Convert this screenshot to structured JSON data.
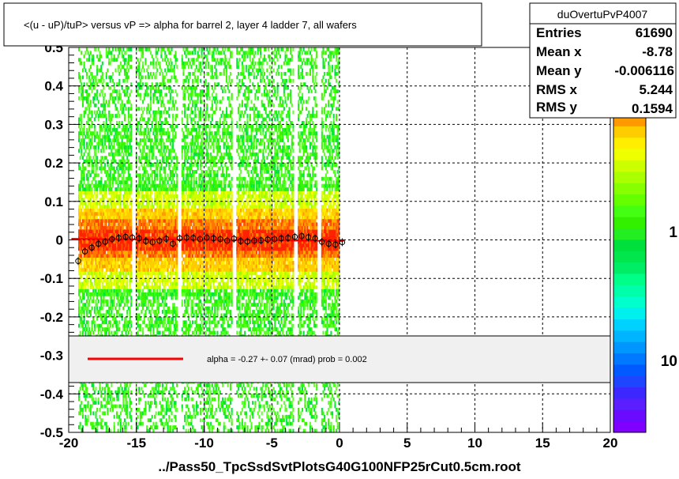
{
  "chart_data": {
    "type": "heatmap",
    "title": "<(u - uP)/tuP> versus   vP => alpha for barrel 2, layer 4 ladder 7, all wafers",
    "xlabel": "../Pass50_TpcSsdSvtPlotsG40G100NFP25rCut0.5cm.root",
    "ylabel": "",
    "xlim": [
      -20,
      20
    ],
    "ylim": [
      -0.5,
      0.5
    ],
    "x_ticks": [
      "-20",
      "-15",
      "-10",
      "-5",
      "0",
      "5",
      "10",
      "15",
      "20"
    ],
    "x_tick_values": [
      -20,
      -15,
      -10,
      -5,
      0,
      5,
      10,
      15,
      20
    ],
    "y_ticks": [
      "-0.5",
      "-0.4",
      "-0.3",
      "-0.2",
      "-0.1",
      "0",
      "0.1",
      "0.2",
      "0.3",
      "0.4",
      "0.5"
    ],
    "y_tick_values": [
      -0.5,
      -0.4,
      -0.3,
      -0.2,
      -0.1,
      0,
      0.1,
      0.2,
      0.3,
      0.4,
      0.5
    ],
    "grid": true,
    "colorbar_labels": [
      "1",
      "10"
    ],
    "stats": {
      "name": "duOvertuPvP4007",
      "rows": [
        {
          "label": "Entries",
          "value": "61690"
        },
        {
          "label": "Mean x",
          "value": "-8.78"
        },
        {
          "label": "Mean y",
          "value": "-0.006116"
        },
        {
          "label": "RMS x",
          "value": "5.244"
        },
        {
          "label": "RMS y",
          "value": "0.1594"
        }
      ]
    },
    "fit": {
      "label": "alpha =   -0.27 +-  0.07 (mrad) prob = 0.002",
      "x_range": [
        -19.8,
        0.3
      ],
      "y_at_start": 0.003,
      "y_at_end": -0.003,
      "color": "#ff0000"
    },
    "profile_points": [
      {
        "x": -19.3,
        "y": -0.055
      },
      {
        "x": -18.8,
        "y": -0.03
      },
      {
        "x": -18.3,
        "y": -0.02
      },
      {
        "x": -17.8,
        "y": -0.01
      },
      {
        "x": -17.3,
        "y": -0.005
      },
      {
        "x": -16.8,
        "y": 0.002
      },
      {
        "x": -16.3,
        "y": 0.005
      },
      {
        "x": -15.8,
        "y": 0.008
      },
      {
        "x": -15.3,
        "y": 0.006
      },
      {
        "x": -14.8,
        "y": 0.004
      },
      {
        "x": -14.3,
        "y": -0.003
      },
      {
        "x": -13.8,
        "y": -0.006
      },
      {
        "x": -13.3,
        "y": -0.002
      },
      {
        "x": -12.8,
        "y": 0.003
      },
      {
        "x": -12.3,
        "y": -0.01
      },
      {
        "x": -11.8,
        "y": 0.004
      },
      {
        "x": -11.3,
        "y": 0.006
      },
      {
        "x": -10.8,
        "y": 0.005
      },
      {
        "x": -10.3,
        "y": 0.002
      },
      {
        "x": -9.8,
        "y": 0.006
      },
      {
        "x": -9.3,
        "y": 0.004
      },
      {
        "x": -8.8,
        "y": 0.002
      },
      {
        "x": -8.3,
        "y": -0.002
      },
      {
        "x": -7.8,
        "y": 0.003
      },
      {
        "x": -7.3,
        "y": -0.003
      },
      {
        "x": -6.8,
        "y": -0.004
      },
      {
        "x": -6.3,
        "y": -0.002
      },
      {
        "x": -5.8,
        "y": -0.001
      },
      {
        "x": -5.3,
        "y": 0.001
      },
      {
        "x": -4.8,
        "y": 0.002
      },
      {
        "x": -4.3,
        "y": 0.004
      },
      {
        "x": -3.8,
        "y": 0.005
      },
      {
        "x": -3.3,
        "y": 0.008
      },
      {
        "x": -2.8,
        "y": 0.01
      },
      {
        "x": -2.3,
        "y": 0.007
      },
      {
        "x": -1.8,
        "y": 0.004
      },
      {
        "x": -1.3,
        "y": -0.005
      },
      {
        "x": -0.8,
        "y": -0.01
      },
      {
        "x": -0.3,
        "y": -0.012
      },
      {
        "x": 0.2,
        "y": -0.006
      }
    ]
  }
}
